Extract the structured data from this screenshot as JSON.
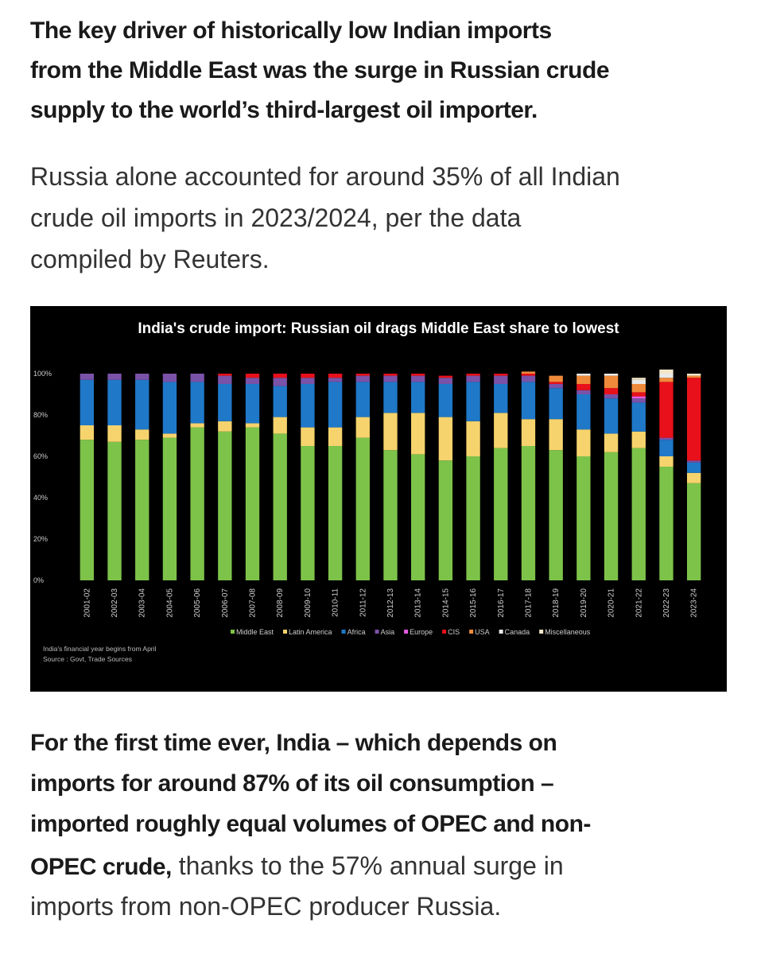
{
  "heading": {
    "lines": [
      "The key driver of historically low Indian imports",
      "from the Middle East was the surge in Russian crude",
      "supply to the world’s third-largest oil importer."
    ]
  },
  "intro": {
    "lines": [
      "Russia alone accounted for around 35% of all Indian",
      "crude oil imports in 2023/2024, per the data",
      "compiled by Reuters."
    ]
  },
  "chart_data": {
    "type": "bar",
    "stacked": true,
    "title": "India's crude import: Russian oil drags Middle East share to lowest",
    "categories": [
      "2001-02",
      "2002-03",
      "2003-04",
      "2004-05",
      "2005-06",
      "2006-07",
      "2007-08",
      "2008-09",
      "2009-10",
      "2010-11",
      "2011-12",
      "2012-13",
      "2013-14",
      "2014-15",
      "2015-16",
      "2016-17",
      "2017-18",
      "2018-19",
      "2019-20",
      "2020-21",
      "2021-22",
      "2022-23",
      "2023-24"
    ],
    "ylim": [
      0,
      100
    ],
    "yticks": [
      {
        "value": 0,
        "label": "0%"
      },
      {
        "value": 20,
        "label": "20%"
      },
      {
        "value": 40,
        "label": "40%"
      },
      {
        "value": 60,
        "label": "60%"
      },
      {
        "value": 80,
        "label": "80%"
      },
      {
        "value": 100,
        "label": "100%"
      }
    ],
    "series": [
      {
        "name": "Middle East",
        "color": "#7dc34a",
        "values": [
          68,
          67,
          68,
          69,
          74,
          72,
          74,
          71,
          65,
          65,
          69,
          63,
          61,
          58,
          60,
          64,
          65,
          63,
          60,
          62,
          64,
          55,
          47
        ]
      },
      {
        "name": "Latin America",
        "color": "#f6d36c",
        "values": [
          7,
          8,
          5,
          2,
          2,
          5,
          2,
          8,
          9,
          9,
          10,
          18,
          20,
          21,
          17,
          17,
          13,
          15,
          13,
          9,
          8,
          5,
          5
        ]
      },
      {
        "name": "Africa",
        "color": "#1f78c8",
        "values": [
          22,
          22,
          24,
          25,
          20,
          18,
          19,
          15,
          21,
          22,
          17,
          15,
          15,
          16,
          19,
          14,
          18,
          15,
          17,
          17,
          14,
          8,
          5
        ]
      },
      {
        "name": "Asia",
        "color": "#7a52a8",
        "values": [
          3,
          3,
          3,
          4,
          4,
          4,
          3,
          4,
          3,
          2,
          3,
          3,
          3,
          3,
          3,
          4,
          3,
          2,
          2,
          2,
          2,
          1,
          1
        ]
      },
      {
        "name": "Europe",
        "color": "#e35ce0",
        "values": [
          0,
          0,
          0,
          0,
          0,
          0,
          0,
          0,
          0,
          0,
          0,
          0,
          0,
          0,
          0,
          0,
          0,
          0,
          0,
          0,
          1,
          0,
          0
        ]
      },
      {
        "name": "CIS",
        "color": "#e8101a",
        "values": [
          0,
          0,
          0,
          0,
          0,
          1,
          2,
          2,
          2,
          2,
          1,
          1,
          1,
          1,
          1,
          1,
          1,
          1,
          3,
          3,
          2,
          27,
          40
        ]
      },
      {
        "name": "USA",
        "color": "#ef8a3a",
        "values": [
          0,
          0,
          0,
          0,
          0,
          0,
          0,
          0,
          0,
          0,
          0,
          0,
          0,
          0,
          0,
          0,
          1,
          3,
          4,
          6,
          4,
          2,
          1
        ]
      },
      {
        "name": "Canada",
        "color": "#e9e9e9",
        "values": [
          0,
          0,
          0,
          0,
          0,
          0,
          0,
          0,
          0,
          0,
          0,
          0,
          0,
          0,
          0,
          0,
          0,
          0,
          1,
          1,
          2,
          2,
          0
        ]
      },
      {
        "name": "Miscellaneous",
        "color": "#f3e6c8",
        "values": [
          0,
          0,
          0,
          0,
          0,
          0,
          0,
          0,
          0,
          0,
          0,
          0,
          0,
          0,
          0,
          0,
          0,
          0,
          0,
          0,
          1,
          2,
          1
        ]
      }
    ],
    "notes": [
      "India's financial year begins from April",
      "Source : Govt, Trade Sources"
    ]
  },
  "closing": {
    "lines": [
      [
        {
          "text": "For the first time ever, India – which depends on",
          "bold": true
        }
      ],
      [
        {
          "text": "imports for around 87% of its oil consumption –",
          "bold": true
        }
      ],
      [
        {
          "text": "imported roughly equal volumes of OPEC and non-",
          "bold": true
        }
      ],
      [
        {
          "text": "OPEC crude,",
          "bold": true
        },
        {
          "text": " thanks to the 57% annual surge in",
          "bold": false
        }
      ],
      [
        {
          "text": "imports from non-OPEC producer Russia.",
          "bold": false
        }
      ]
    ]
  }
}
